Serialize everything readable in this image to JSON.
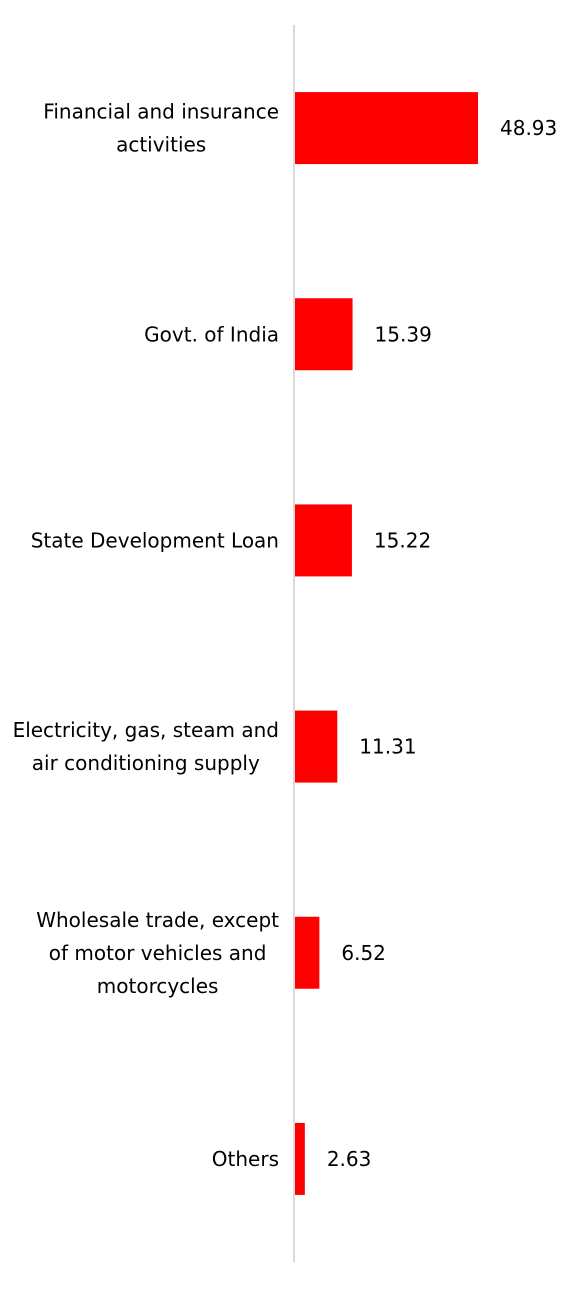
{
  "chart_data": {
    "type": "bar",
    "orientation": "horizontal",
    "categories": [
      "Financial and insurance activities",
      "Govt. of India",
      "State Development Loan",
      "Electricity, gas, steam and air conditioning supply",
      "Wholesale trade, except of motor vehicles and motorcycles",
      "Others"
    ],
    "category_lines": [
      [
        "Financial and insurance",
        "activities"
      ],
      [
        "Govt. of India"
      ],
      [
        "State Development Loan"
      ],
      [
        "Electricity, gas, steam and",
        "air conditioning supply"
      ],
      [
        "Wholesale trade, except",
        "of motor vehicles and",
        "motorcycles"
      ],
      [
        "Others"
      ]
    ],
    "values": [
      48.93,
      15.39,
      15.22,
      11.31,
      6.52,
      2.63
    ],
    "value_labels": [
      "48.93",
      "15.39",
      "15.22",
      "11.31",
      "6.52",
      "2.63"
    ],
    "title": "",
    "xlabel": "",
    "ylabel": "",
    "xlim": [
      0,
      48.93
    ],
    "grid": false,
    "legend": "none",
    "bar_color": "#ff0000",
    "axis_color": "#d9d9d9"
  }
}
